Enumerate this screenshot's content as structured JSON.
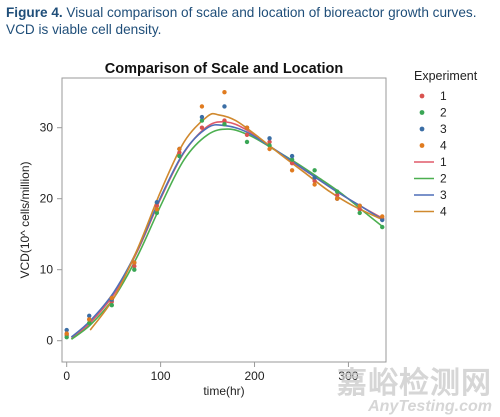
{
  "caption": {
    "figure_label": "Figure 4.",
    "text": " Visual comparison of scale and location of bioreactor growth curves. VCD is viable cell density."
  },
  "watermark": {
    "chinese": "嘉峪检测网",
    "english": "AnyTesting.com"
  },
  "chart_data": {
    "type": "scatter",
    "title": "Comparison of Scale and Location",
    "xlabel": "time(hr)",
    "ylabel": "VCD(10^ cells/million)",
    "xlim": [
      -5,
      340
    ],
    "ylim": [
      -3,
      37
    ],
    "xticks": [
      0,
      100,
      200,
      300
    ],
    "yticks": [
      0,
      10,
      20,
      30
    ],
    "grid": false,
    "legend_title": "Experiment",
    "legend_position": "right",
    "point_series": [
      {
        "name": "1",
        "color": "#d9534f",
        "points": [
          [
            0,
            0.8
          ],
          [
            24,
            3
          ],
          [
            48,
            5.5
          ],
          [
            72,
            10.5
          ],
          [
            96,
            19
          ],
          [
            120,
            26.5
          ],
          [
            144,
            30
          ],
          [
            168,
            31
          ],
          [
            192,
            29
          ],
          [
            216,
            28
          ],
          [
            240,
            25
          ],
          [
            264,
            22.5
          ],
          [
            288,
            20.5
          ],
          [
            312,
            18.5
          ],
          [
            336,
            17.2
          ]
        ]
      },
      {
        "name": "2",
        "color": "#3aa655",
        "points": [
          [
            0,
            0.5
          ],
          [
            24,
            2.5
          ],
          [
            48,
            5
          ],
          [
            72,
            10
          ],
          [
            96,
            18
          ],
          [
            120,
            26
          ],
          [
            144,
            31
          ],
          [
            168,
            30.5
          ],
          [
            192,
            28
          ],
          [
            216,
            27.5
          ],
          [
            240,
            25.5
          ],
          [
            264,
            24
          ],
          [
            288,
            21
          ],
          [
            312,
            18
          ],
          [
            336,
            16
          ]
        ]
      },
      {
        "name": "3",
        "color": "#3b6ea5",
        "points": [
          [
            0,
            1.5
          ],
          [
            24,
            3.5
          ],
          [
            48,
            5.8
          ],
          [
            72,
            11
          ],
          [
            96,
            19.5
          ],
          [
            120,
            27
          ],
          [
            144,
            31.5
          ],
          [
            168,
            33
          ],
          [
            192,
            30
          ],
          [
            216,
            28.5
          ],
          [
            240,
            26
          ],
          [
            264,
            23
          ],
          [
            288,
            20
          ],
          [
            312,
            19
          ],
          [
            336,
            17
          ]
        ]
      },
      {
        "name": "4",
        "color": "#e07b1f",
        "points": [
          [
            0,
            1
          ],
          [
            24,
            3
          ],
          [
            48,
            6
          ],
          [
            72,
            11
          ],
          [
            96,
            18.5
          ],
          [
            120,
            27
          ],
          [
            144,
            33
          ],
          [
            168,
            35
          ],
          [
            192,
            30
          ],
          [
            216,
            27
          ],
          [
            240,
            24
          ],
          [
            264,
            22
          ],
          [
            288,
            20
          ],
          [
            312,
            19
          ],
          [
            336,
            17.5
          ]
        ]
      }
    ],
    "line_series": [
      {
        "name": "1",
        "color": "#e05a6a",
        "points": [
          [
            5,
            0.3
          ],
          [
            25,
            2.5
          ],
          [
            50,
            6.5
          ],
          [
            75,
            12.5
          ],
          [
            100,
            20
          ],
          [
            125,
            26.5
          ],
          [
            150,
            30.2
          ],
          [
            170,
            30.8
          ],
          [
            190,
            29.8
          ],
          [
            215,
            27.5
          ],
          [
            240,
            25.2
          ],
          [
            265,
            23
          ],
          [
            290,
            20.8
          ],
          [
            315,
            18.8
          ],
          [
            337,
            17.2
          ]
        ]
      },
      {
        "name": "2",
        "color": "#4caf50",
        "points": [
          [
            5,
            0.2
          ],
          [
            25,
            2.2
          ],
          [
            50,
            6
          ],
          [
            75,
            11.8
          ],
          [
            100,
            19
          ],
          [
            125,
            25.5
          ],
          [
            150,
            29
          ],
          [
            172,
            29.8
          ],
          [
            195,
            28.9
          ],
          [
            220,
            27
          ],
          [
            245,
            25
          ],
          [
            270,
            22.8
          ],
          [
            295,
            20.5
          ],
          [
            320,
            17.8
          ],
          [
            337,
            16
          ]
        ]
      },
      {
        "name": "3",
        "color": "#4f6fb8",
        "points": [
          [
            5,
            0.5
          ],
          [
            25,
            2.8
          ],
          [
            50,
            6.8
          ],
          [
            75,
            12.7
          ],
          [
            100,
            20.2
          ],
          [
            125,
            26.6
          ],
          [
            150,
            30
          ],
          [
            168,
            30.3
          ],
          [
            190,
            29.5
          ],
          [
            215,
            27.5
          ],
          [
            240,
            25.3
          ],
          [
            265,
            23
          ],
          [
            290,
            20.8
          ],
          [
            315,
            18.8
          ],
          [
            337,
            17
          ]
        ]
      },
      {
        "name": "4",
        "color": "#d0892e",
        "points": [
          [
            25,
            1.5
          ],
          [
            50,
            6
          ],
          [
            75,
            12.8
          ],
          [
            100,
            21
          ],
          [
            125,
            28
          ],
          [
            150,
            31.6
          ],
          [
            162,
            31.8
          ],
          [
            180,
            31
          ],
          [
            205,
            28.6
          ],
          [
            230,
            26
          ],
          [
            255,
            23.5
          ],
          [
            280,
            21
          ],
          [
            305,
            19
          ],
          [
            337,
            17
          ]
        ]
      }
    ]
  }
}
